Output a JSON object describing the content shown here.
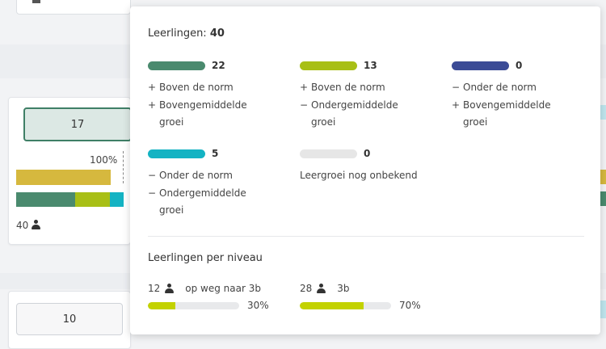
{
  "colors": {
    "dark_green": "#4a8a6e",
    "lime": "#a8bf16",
    "navy": "#3b4b96",
    "cyan": "#14b3c3",
    "gray": "#e6e6e6",
    "gold": "#d6b83e"
  },
  "left_card": {
    "count_value": "17",
    "percent": "100%",
    "students": "40",
    "bottom_count_value": "10"
  },
  "popover": {
    "title_label": "Leerlingen:",
    "title_count": "40",
    "categories": [
      {
        "count": "22",
        "color": "#4a8a6e",
        "lines": [
          {
            "sym": "+",
            "text": "Boven de norm"
          },
          {
            "sym": "+",
            "text": "Bovengemiddelde groei"
          }
        ]
      },
      {
        "count": "13",
        "color": "#a8bf16",
        "lines": [
          {
            "sym": "+",
            "text": "Boven de norm"
          },
          {
            "sym": "−",
            "text": "Ondergemiddelde groei"
          }
        ]
      },
      {
        "count": "0",
        "color": "#3b4b96",
        "lines": [
          {
            "sym": "−",
            "text": "Onder de norm"
          },
          {
            "sym": "+",
            "text": "Bovengemiddelde groei"
          }
        ]
      },
      {
        "count": "5",
        "color": "#14b3c3",
        "lines": [
          {
            "sym": "−",
            "text": "Onder de norm"
          },
          {
            "sym": "−",
            "text": "Ondergemiddelde groei"
          }
        ]
      },
      {
        "count": "0",
        "color": "#e6e6e6",
        "lines": [
          {
            "sym": "",
            "text": "Leergroei nog onbekend"
          }
        ]
      }
    ],
    "per_niveau_title": "Leerlingen per niveau",
    "levels": [
      {
        "count": "12",
        "label": "op weg naar 3b",
        "percent_text": "30%",
        "fraction": 0.3
      },
      {
        "count": "28",
        "label": "3b",
        "percent_text": "70%",
        "fraction": 0.7
      }
    ]
  }
}
